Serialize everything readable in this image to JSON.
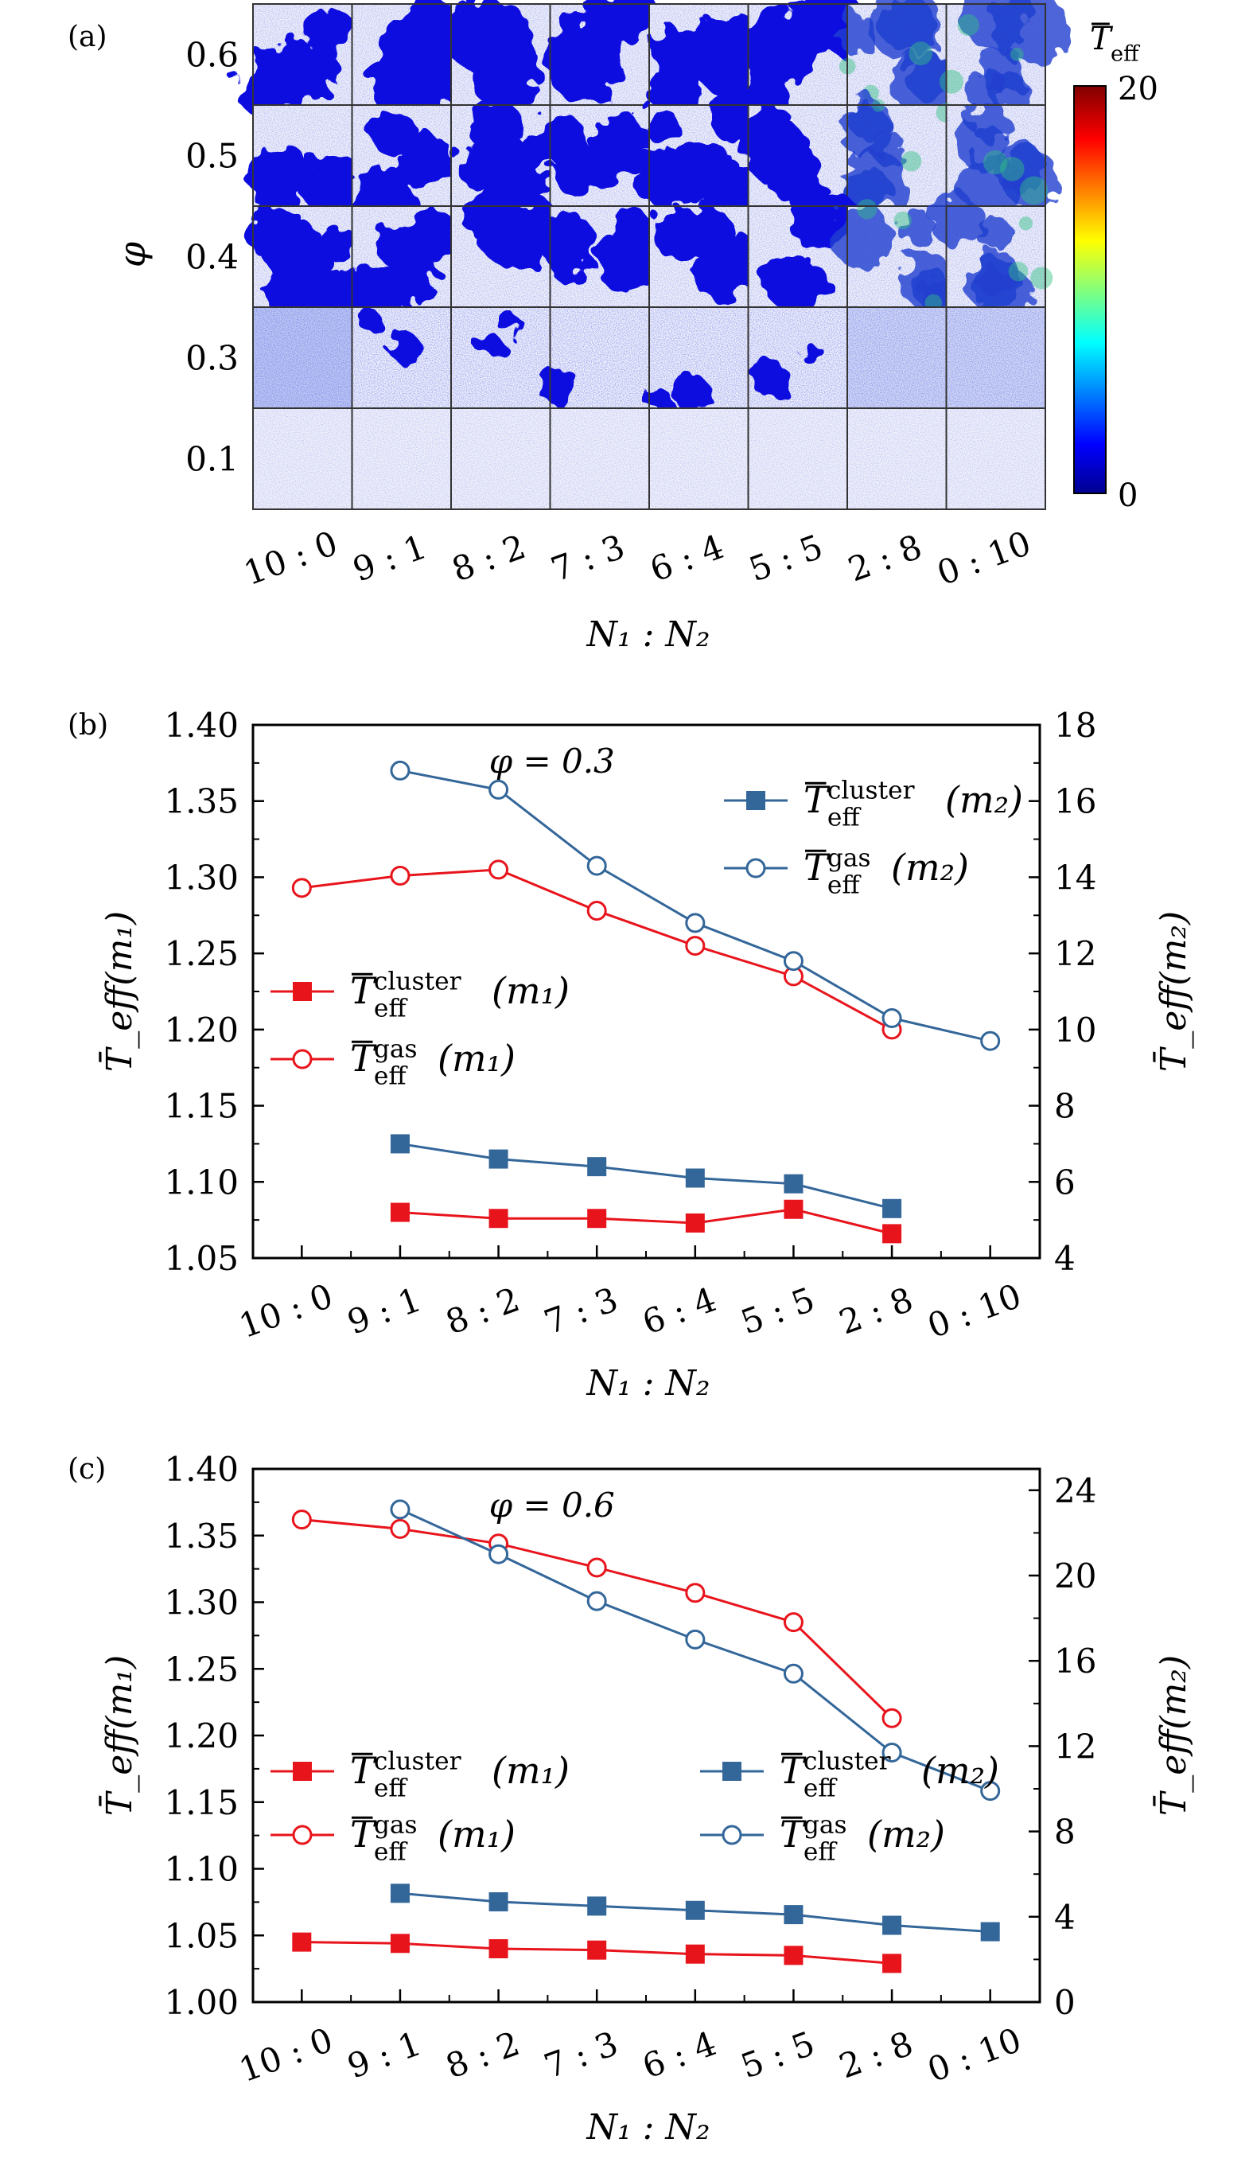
{
  "panel_a": {
    "label": "(a)",
    "ylabel": "φ",
    "xlabel": "N₁ : N₂",
    "rows": [
      "0.6",
      "0.5",
      "0.4",
      "0.3",
      "0.1"
    ],
    "columns": [
      "10 : 0",
      "9 : 1",
      "8 : 2",
      "7 : 3",
      "6 : 4",
      "5 : 5",
      "2 : 8",
      "0 : 10"
    ],
    "colorbar": {
      "title": "T_eff",
      "min_label": "0",
      "max_label": "20",
      "colormap": "jet"
    }
  },
  "chart_data": [
    {
      "type": "line",
      "label": "(b)",
      "annotation": "φ = 0.3",
      "xlabel": "N₁ : N₂",
      "ylabel": "T̄_eff(m₁)",
      "ylabel_right": "T̄_eff(m₂)",
      "categories": [
        "10 : 0",
        "9 : 1",
        "8 : 2",
        "7 : 3",
        "6 : 4",
        "5 : 5",
        "2 : 8",
        "0 : 10"
      ],
      "ylim": [
        1.05,
        1.4
      ],
      "yticks": [
        "1.05",
        "1.10",
        "1.15",
        "1.20",
        "1.25",
        "1.30",
        "1.35",
        "1.40"
      ],
      "ylim_right": [
        4,
        18
      ],
      "yticks_right": [
        "4",
        "6",
        "8",
        "10",
        "12",
        "14",
        "16",
        "18"
      ],
      "series": [
        {
          "name": "T̄_eff^cluster(m₁)",
          "axis": "left",
          "color": "#e8141c",
          "marker": "square-filled",
          "values": [
            null,
            1.08,
            1.076,
            1.076,
            1.073,
            1.082,
            1.066,
            null
          ]
        },
        {
          "name": "T̄_eff^gas(m₁)",
          "axis": "left",
          "color": "#e8141c",
          "marker": "circle-open",
          "values": [
            1.293,
            1.301,
            1.305,
            1.278,
            1.255,
            1.235,
            1.2,
            null
          ]
        },
        {
          "name": "T̄_eff^cluster(m₂)",
          "axis": "right",
          "color": "#336699",
          "marker": "square-filled",
          "values": [
            null,
            7.0,
            6.6,
            6.4,
            6.1,
            5.95,
            5.3,
            null
          ]
        },
        {
          "name": "T̄_eff^gas(m₂)",
          "axis": "right",
          "color": "#336699",
          "marker": "circle-open",
          "values": [
            null,
            16.8,
            16.3,
            14.3,
            12.8,
            11.8,
            10.3,
            9.7
          ]
        }
      ],
      "legend": [
        {
          "placement": "top-right",
          "items": [
            2,
            3
          ]
        },
        {
          "placement": "center-left",
          "items": [
            0,
            1
          ]
        }
      ]
    },
    {
      "type": "line",
      "label": "(c)",
      "annotation": "φ = 0.6",
      "xlabel": "N₁ : N₂",
      "ylabel": "T̄_eff(m₁)",
      "ylabel_right": "T̄_eff(m₂)",
      "categories": [
        "10 : 0",
        "9 : 1",
        "8 : 2",
        "7 : 3",
        "6 : 4",
        "5 : 5",
        "2 : 8",
        "0 : 10"
      ],
      "ylim": [
        1.0,
        1.4
      ],
      "yticks": [
        "1.00",
        "1.05",
        "1.10",
        "1.15",
        "1.20",
        "1.25",
        "1.30",
        "1.35",
        "1.40"
      ],
      "ylim_right": [
        0,
        25
      ],
      "yticks_right": [
        "0",
        "4",
        "8",
        "12",
        "16",
        "20",
        "24"
      ],
      "series": [
        {
          "name": "T̄_eff^cluster(m₁)",
          "axis": "left",
          "color": "#e8141c",
          "marker": "square-filled",
          "values": [
            1.045,
            1.044,
            1.04,
            1.039,
            1.036,
            1.035,
            1.029,
            null
          ]
        },
        {
          "name": "T̄_eff^gas(m₁)",
          "axis": "left",
          "color": "#e8141c",
          "marker": "circle-open",
          "values": [
            1.362,
            1.355,
            1.344,
            1.326,
            1.307,
            1.285,
            1.213,
            null
          ]
        },
        {
          "name": "T̄_eff^cluster(m₂)",
          "axis": "right",
          "color": "#336699",
          "marker": "square-filled",
          "values": [
            null,
            5.1,
            4.7,
            4.5,
            4.3,
            4.1,
            3.6,
            3.3
          ]
        },
        {
          "name": "T̄_eff^gas(m₂)",
          "axis": "right",
          "color": "#336699",
          "marker": "circle-open",
          "values": [
            null,
            23.1,
            21.0,
            18.8,
            17.0,
            15.4,
            11.7,
            9.9
          ]
        }
      ],
      "legend": [
        {
          "placement": "center-left",
          "items": [
            0,
            2,
            1,
            3
          ]
        }
      ]
    }
  ]
}
